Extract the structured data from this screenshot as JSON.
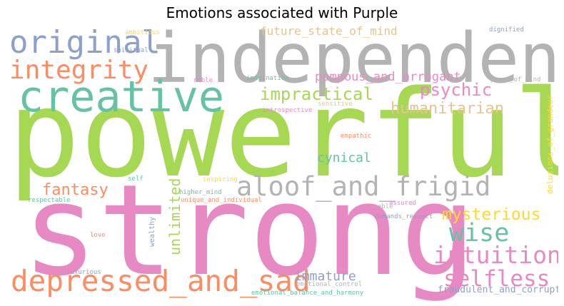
{
  "title": "Emotions associated with Purple",
  "palette": {
    "green": "#a6d854",
    "pink": "#e78ac3",
    "gray": "#b3b3b3",
    "teal": "#66c2a5",
    "orange": "#fc8d62",
    "blue": "#8da0cb",
    "yellow": "#ffd92f",
    "tan": "#e5c494"
  },
  "words": {
    "powerful": "powerful",
    "strong": "strong",
    "independent": "independent",
    "creative": "creative",
    "original": "original",
    "integrity": "integrity",
    "depressed_and_sad": "depressed_and_sad",
    "aloof_and_frigid": "aloof_and_frigid",
    "intuition": "intuition",
    "wise": "wise",
    "selfless": "selfless",
    "mysterious": "mysterious",
    "fantasy": "fantasy",
    "impractical": "impractical",
    "humanitarian": "humanitarian",
    "psychic": "psychic",
    "pompous_and_arrogant": "pompous_and_arrogant",
    "future_state_of_mind": "future_state_of_mind",
    "cynical": "cynical",
    "unlimited": "unlimited",
    "immature": "immature",
    "fraudulent_and_corrupt": "fraudulent_and_corrupt",
    "delusions_of_grandeur": "delusions_of_grandeur",
    "dignified": "dignified",
    "ambitious": "ambitious",
    "spiritual": "spiritual",
    "noble": "noble",
    "imagination": "imagination",
    "peace_of_mind": "peace_of_mind",
    "sensitive": "sensitive",
    "introspective": "introspective",
    "empathic": "empathic",
    "self": "self",
    "inspiring": "inspiring",
    "higher_mind": "higher_mind",
    "respectable": "respectable",
    "unique_and_individual": "unique_and_individual",
    "assured": "assured",
    "stable": "stable",
    "demands_respect": "demands_respect",
    "love": "love",
    "wealthy": "wealthy",
    "luxurious": "luxurious",
    "emotional_control": "emotional_control",
    "emotional_balance_and_harmony": "emotional_balance_and_harmony"
  }
}
